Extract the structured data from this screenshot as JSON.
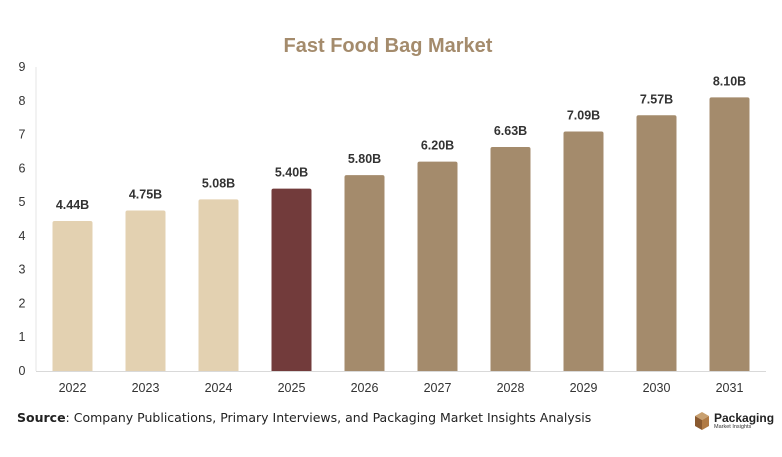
{
  "chart_data": {
    "type": "bar",
    "title": "Fast Food Bag Market",
    "categories": [
      "2022",
      "2023",
      "2024",
      "2025",
      "2026",
      "2027",
      "2028",
      "2029",
      "2030",
      "2031"
    ],
    "values": [
      4.44,
      4.75,
      5.08,
      5.4,
      5.8,
      6.2,
      6.63,
      7.09,
      7.57,
      8.1
    ],
    "data_labels": [
      "4.44B",
      "4.75B",
      "5.08B",
      "5.40B",
      "5.80B",
      "6.20B",
      "6.63B",
      "7.09B",
      "7.57B",
      "8.10B"
    ],
    "bar_colors": [
      "#e3d1b1",
      "#e3d1b1",
      "#e3d1b1",
      "#723b3b",
      "#a48b6c",
      "#a48b6c",
      "#a48b6c",
      "#a48b6c",
      "#a48b6c",
      "#a48b6c"
    ],
    "y_ticks": [
      0,
      1,
      2,
      3,
      4,
      5,
      6,
      7,
      8,
      9
    ],
    "ylim": [
      0,
      9
    ],
    "xlabel": "",
    "ylabel": "",
    "grid": false,
    "legend": "none",
    "title_color": "#a48b6c"
  },
  "footer": {
    "source_label": "Source",
    "source_text": ": Company Publications, Primary Interviews, and Packaging Market Insights Analysis"
  },
  "brand": {
    "name": "Packaging",
    "tagline": "Market Insights",
    "icon": "box-logo-icon"
  }
}
